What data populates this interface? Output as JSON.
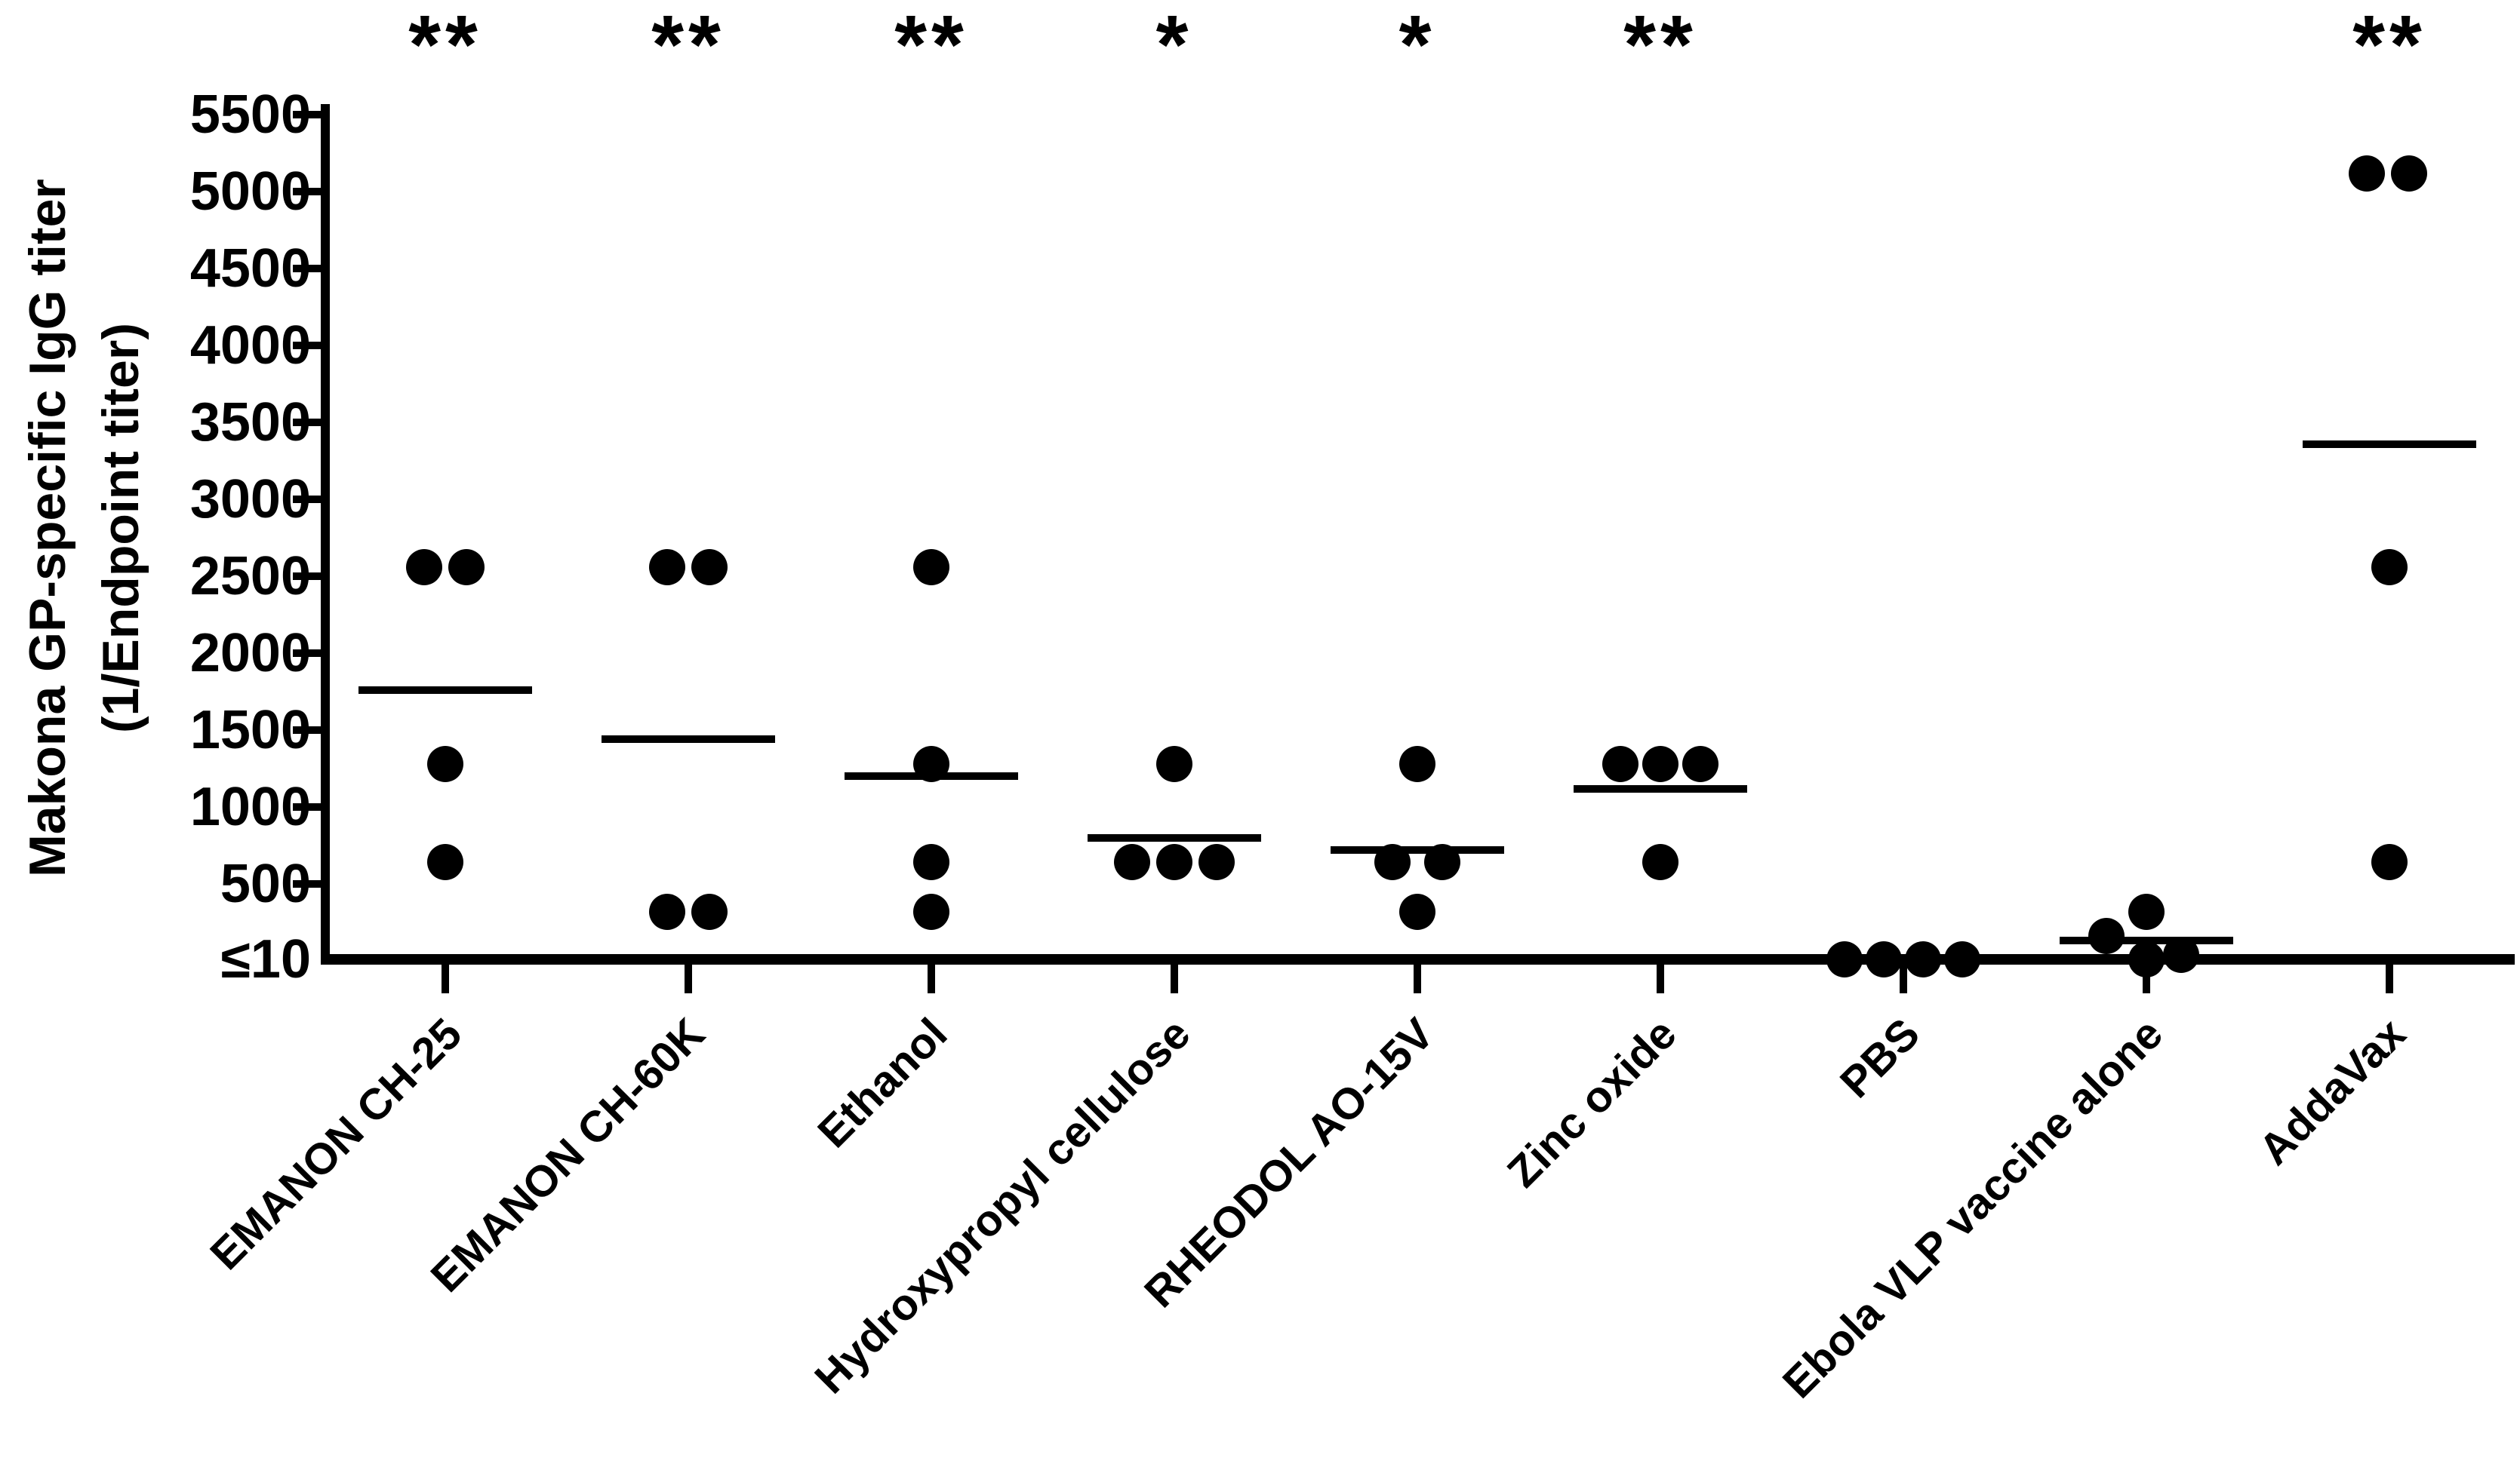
{
  "figure": {
    "background": "#ffffff",
    "ink_color": "#000000"
  },
  "chart_data": {
    "type": "scatter",
    "title": "",
    "ylabel_line1": "Makona GP-specific IgG titer",
    "ylabel_line2": "(1/Endpoint titer)",
    "ylim": [
      10,
      5500
    ],
    "grid": false,
    "legend": false,
    "marker": "filled-circle",
    "mean_indicator": "horizontal line at group mean",
    "yticks": [
      {
        "label": "5500",
        "value": 5500
      },
      {
        "label": "5000",
        "value": 5000
      },
      {
        "label": "4500",
        "value": 4500
      },
      {
        "label": "4000",
        "value": 4000
      },
      {
        "label": "3500",
        "value": 3500
      },
      {
        "label": "3000",
        "value": 3000
      },
      {
        "label": "2500",
        "value": 2500
      },
      {
        "label": "2000",
        "value": 2000
      },
      {
        "label": "1500",
        "value": 1500
      },
      {
        "label": "1000",
        "value": 1000
      },
      {
        "label": "500",
        "value": 500
      },
      {
        "label": "≤10",
        "value": 10
      }
    ],
    "groups": [
      {
        "label": "EMANON CH-25",
        "significance": "**",
        "mean": 1760,
        "points": [
          {
            "value": 2560,
            "dx": -28
          },
          {
            "value": 2560,
            "dx": 28
          },
          {
            "value": 1280,
            "dx": 0
          },
          {
            "value": 640,
            "dx": 0
          }
        ]
      },
      {
        "label": "EMANON CH-60K",
        "significance": "**",
        "mean": 1440,
        "points": [
          {
            "value": 2560,
            "dx": -28
          },
          {
            "value": 2560,
            "dx": 28
          },
          {
            "value": 320,
            "dx": -28
          },
          {
            "value": 320,
            "dx": 28
          }
        ]
      },
      {
        "label": "Ethanol",
        "significance": "**",
        "mean": 1200,
        "points": [
          {
            "value": 2560,
            "dx": 0
          },
          {
            "value": 1280,
            "dx": 0
          },
          {
            "value": 640,
            "dx": 0
          },
          {
            "value": 320,
            "dx": 0
          }
        ]
      },
      {
        "label": "Hydroxypropyl cellulose",
        "significance": "*",
        "mean": 800,
        "points": [
          {
            "value": 1280,
            "dx": 0
          },
          {
            "value": 640,
            "dx": -56
          },
          {
            "value": 640,
            "dx": 0
          },
          {
            "value": 640,
            "dx": 56
          }
        ]
      },
      {
        "label": "RHEODOL AO-15V",
        "significance": "*",
        "mean": 720,
        "points": [
          {
            "value": 1280,
            "dx": 0
          },
          {
            "value": 640,
            "dx": -33
          },
          {
            "value": 640,
            "dx": 33
          },
          {
            "value": 320,
            "dx": 0
          }
        ]
      },
      {
        "label": "Zinc oxide",
        "significance": "**",
        "mean": 1120,
        "points": [
          {
            "value": 1280,
            "dx": -53
          },
          {
            "value": 1280,
            "dx": 0
          },
          {
            "value": 1280,
            "dx": 53
          },
          {
            "value": 640,
            "dx": 0
          }
        ]
      },
      {
        "label": "PBS",
        "significance": "",
        "mean": 10,
        "points": [
          {
            "value": 10,
            "dx": -78
          },
          {
            "value": 10,
            "dx": -26
          },
          {
            "value": 10,
            "dx": 26
          },
          {
            "value": 10,
            "dx": 78
          }
        ]
      },
      {
        "label": "Ebola VLP vaccine alone",
        "significance": "",
        "mean": 132,
        "points": [
          {
            "value": 320,
            "dx": 0
          },
          {
            "value": 160,
            "dx": -53
          },
          {
            "value": 40,
            "dx": 46
          },
          {
            "value": 10,
            "dx": 0
          }
        ]
      },
      {
        "label": "AddaVax",
        "significance": "**",
        "mean": 3360,
        "points": [
          {
            "value": 5120,
            "dx": -30
          },
          {
            "value": 5120,
            "dx": 26
          },
          {
            "value": 2560,
            "dx": 0
          },
          {
            "value": 640,
            "dx": 0
          }
        ]
      }
    ]
  }
}
